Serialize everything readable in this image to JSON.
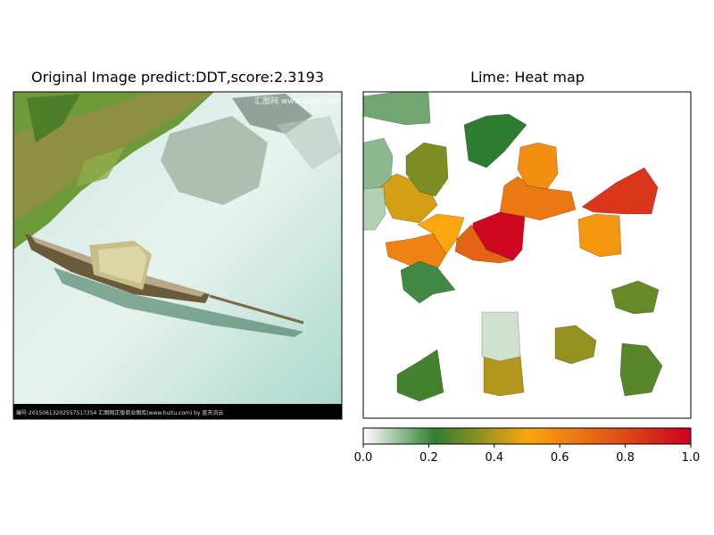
{
  "left_panel": {
    "title": "Original Image predict:DDT,score:2.3193"
  },
  "right_panel": {
    "title": "Lime: Heat map"
  },
  "image_text": {
    "watermark": "汇图网 www.huitu.com",
    "caption": "编号:20150613202557517354  汇图网正版商业图库(www.huitu.com) by 蓝天流云"
  },
  "chart_data": {
    "type": "heatmap",
    "title": "Lime: Heat map",
    "colorbar": {
      "range": [
        0.0,
        1.0
      ],
      "ticks": [
        0.0,
        0.2,
        0.4,
        0.6,
        0.8,
        1.0
      ],
      "tick_labels": [
        "0.0",
        "0.2",
        "0.4",
        "0.6",
        "0.8",
        "1.0"
      ],
      "colors": [
        "#ffffff",
        "#2e7d32",
        "#f9a60f",
        "#cc0022"
      ],
      "orientation": "horizontal",
      "placement": "bottom"
    },
    "regions": [
      {
        "value": 0.98
      },
      {
        "value": 0.85
      },
      {
        "value": 0.72
      },
      {
        "value": 0.65
      },
      {
        "value": 0.62
      },
      {
        "value": 0.58
      },
      {
        "value": 0.55
      },
      {
        "value": 0.5
      },
      {
        "value": 0.45
      },
      {
        "value": 0.4
      },
      {
        "value": 0.36
      },
      {
        "value": 0.33
      },
      {
        "value": 0.3
      },
      {
        "value": 0.28
      },
      {
        "value": 0.25
      },
      {
        "value": 0.22
      },
      {
        "value": 0.2
      },
      {
        "value": 0.15
      },
      {
        "value": 0.12
      },
      {
        "value": 0.08
      },
      {
        "value": 0.05
      }
    ]
  }
}
